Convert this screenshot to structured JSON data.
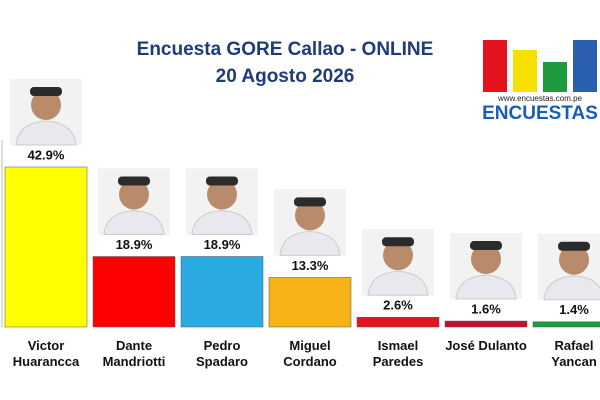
{
  "chart_data": {
    "type": "bar",
    "title": "Encuesta GORE Callao - ONLINE",
    "subtitle": "20 Agosto 2026",
    "categories": [
      "Victor Huarancca",
      "Dante Mandriotti",
      "Pedro Spadaro",
      "Miguel Cordano",
      "Ismael Paredes",
      "José Dulanto",
      "Rafael Yancan"
    ],
    "values": [
      42.9,
      18.9,
      18.9,
      13.3,
      2.6,
      1.6,
      1.4
    ],
    "value_labels": [
      "42.9%",
      "18.9%",
      "18.9%",
      "13.3%",
      "2.6%",
      "1.6%",
      "1.4%"
    ],
    "colors": [
      "#ffff00",
      "#ff0000",
      "#29abe2",
      "#f7b218",
      "#e3141d",
      "#c8102e",
      "#1e9b3f"
    ],
    "logo": {
      "url": "www.encuestas.com.pe",
      "name": "ENCUESTAS"
    }
  }
}
